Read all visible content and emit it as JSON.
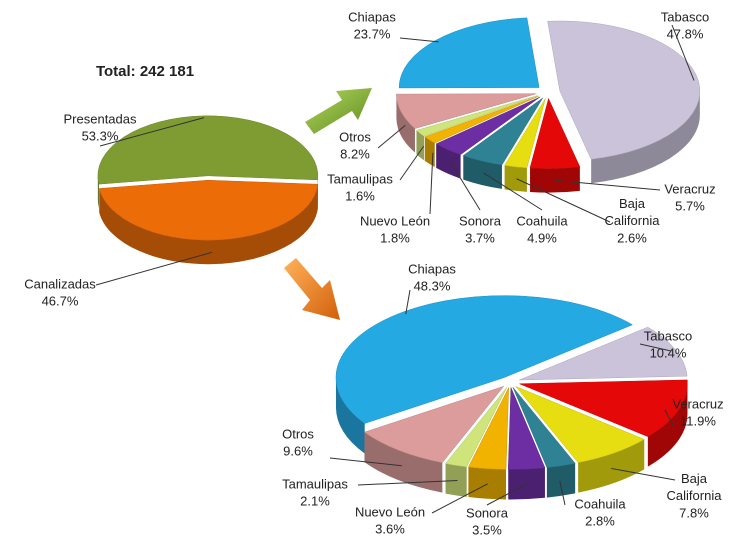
{
  "chart_data": [
    {
      "type": "pie",
      "title": "Total: 242 181",
      "categories": [
        "Presentadas",
        "Canalizadas"
      ],
      "values": [
        53.3,
        46.7
      ],
      "value_labels": [
        "53.3%",
        "46.7%"
      ],
      "colors": [
        "#7e9c32",
        "#ec6c08"
      ]
    },
    {
      "type": "pie",
      "categories": [
        "Tabasco",
        "Veracruz",
        "Baja California",
        "Coahuila",
        "Sonora",
        "Nuevo León",
        "Tamaulipas",
        "Otros",
        "Chiapas"
      ],
      "values": [
        47.8,
        5.7,
        2.6,
        4.9,
        3.7,
        1.8,
        1.6,
        8.2,
        23.7
      ],
      "value_labels": [
        "47.8%",
        "5.7%",
        "2.6%",
        "4.9%",
        "3.7%",
        "1.8%",
        "1.6%",
        "8.2%",
        "23.7%"
      ],
      "colors": [
        "#cbc3da",
        "#e40808",
        "#e6de10",
        "#2e8294",
        "#6c2ea2",
        "#f2b200",
        "#cfe47a",
        "#dc9c9c",
        "#25a9e2"
      ]
    },
    {
      "type": "pie",
      "categories": [
        "Chiapas",
        "Tabasco",
        "Veracruz",
        "Baja California",
        "Coahuila",
        "Sonora",
        "Nuevo León",
        "Tamaulipas",
        "Otros"
      ],
      "values": [
        48.3,
        10.4,
        11.9,
        7.8,
        2.8,
        3.5,
        3.6,
        2.1,
        9.6
      ],
      "value_labels": [
        "48.3%",
        "10.4%",
        "11.9%",
        "7.8%",
        "2.8%",
        "3.5%",
        "3.6%",
        "2.1%",
        "9.6%"
      ],
      "colors": [
        "#25a9e2",
        "#cbc3da",
        "#e40808",
        "#e6de10",
        "#2e8294",
        "#6c2ea2",
        "#f2b200",
        "#cfe47a",
        "#dc9c9c"
      ]
    }
  ]
}
